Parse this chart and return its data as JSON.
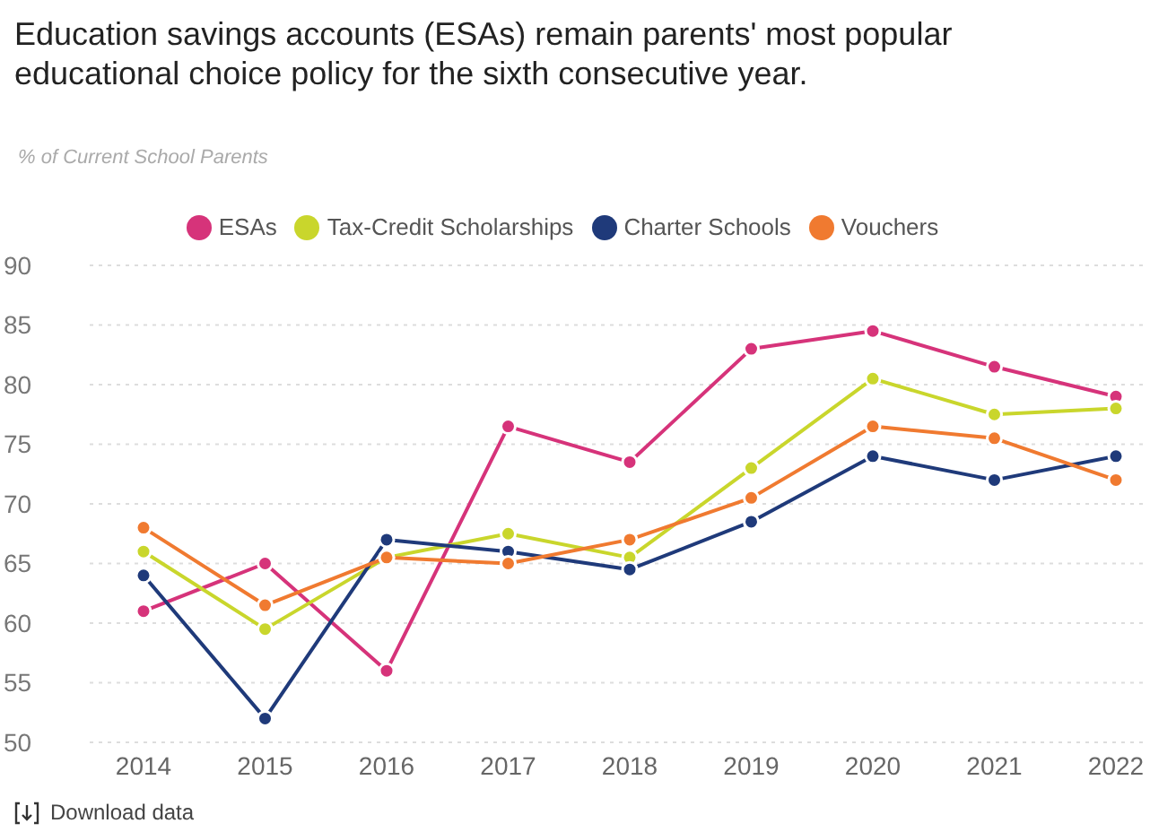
{
  "chart_data": {
    "type": "line",
    "title": "Education savings accounts (ESAs) remain parents' most popular educational choice policy for the sixth consecutive year.",
    "ylabel": "% of Current School Parents",
    "categories": [
      "2014",
      "2015",
      "2016",
      "2017",
      "2018",
      "2019",
      "2020",
      "2021",
      "2022"
    ],
    "series": [
      {
        "name": "ESAs",
        "color": "#d6337a",
        "values": [
          61,
          65,
          56,
          76.5,
          73.5,
          83,
          84.5,
          81.5,
          79
        ]
      },
      {
        "name": "Tax-Credit Scholarships",
        "color": "#c9d62c",
        "values": [
          66,
          59.5,
          65.5,
          67.5,
          65.5,
          73,
          80.5,
          77.5,
          78
        ]
      },
      {
        "name": "Charter Schools",
        "color": "#1f3a7a",
        "values": [
          64,
          52,
          67,
          66,
          64.5,
          68.5,
          74,
          72,
          74
        ]
      },
      {
        "name": "Vouchers",
        "color": "#f07a30",
        "values": [
          68,
          61.5,
          65.5,
          65,
          67,
          70.5,
          76.5,
          75.5,
          72
        ]
      }
    ],
    "ylim": [
      50,
      90
    ],
    "yticks": [
      50,
      55,
      60,
      65,
      70,
      75,
      80,
      85,
      90
    ],
    "grid": "y",
    "legend": "top",
    "marker": "circle",
    "line_style": "solid",
    "annotations": [
      "Download data"
    ]
  }
}
